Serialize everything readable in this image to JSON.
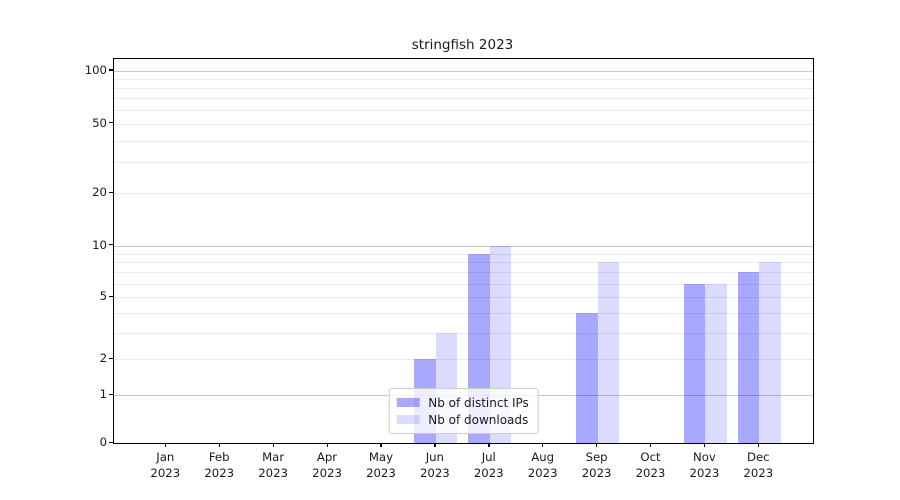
{
  "figure": {
    "background": "#ffffff"
  },
  "chart_data": {
    "type": "bar",
    "title": "stringfish 2023",
    "categories": [
      "Jan 2023",
      "Feb 2023",
      "Mar 2023",
      "Apr 2023",
      "May 2023",
      "Jun 2023",
      "Jul 2023",
      "Aug 2023",
      "Sep 2023",
      "Oct 2023",
      "Nov 2023",
      "Dec 2023"
    ],
    "series": [
      {
        "name": "Nb of distinct IPs",
        "color": "#0000FF57",
        "values": [
          0,
          0,
          0,
          0,
          0,
          2,
          9,
          0,
          4,
          0,
          6,
          7
        ]
      },
      {
        "name": "Nb of downloads",
        "color": "#0000FF24",
        "values": [
          0,
          0,
          0,
          0,
          0,
          3,
          10,
          0,
          8,
          0,
          6,
          8
        ]
      }
    ],
    "xlabel": "",
    "ylabel": "",
    "yscale": "asinh",
    "ylim": [
      0,
      117
    ],
    "y_tick_labels": [
      0,
      1,
      2,
      5,
      10,
      20,
      50,
      100
    ],
    "y_major_gridlines": [
      1,
      10,
      100
    ],
    "y_minor_gridlines": [
      2,
      3,
      4,
      5,
      6,
      7,
      8,
      9,
      20,
      30,
      40,
      50,
      60,
      70,
      80,
      90
    ],
    "grid": true,
    "legend_position": "lower center",
    "colors": {
      "axis": "#000000",
      "major_grid": "#c9c9c9",
      "minor_grid": "#ebebeb",
      "text": "#1a1a1a",
      "legend_border": "#cccccc"
    }
  }
}
